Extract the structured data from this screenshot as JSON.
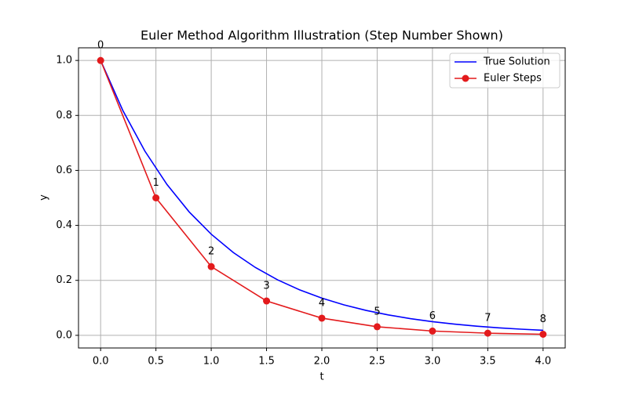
{
  "chart_data": {
    "type": "line",
    "title": "Euler Method Algorithm Illustration (Step Number Shown)",
    "xlabel": "t",
    "ylabel": "y",
    "series": [
      {
        "name": "True Solution",
        "color": "#0000ff",
        "marker": false,
        "x": [
          0,
          0.2,
          0.4,
          0.6,
          0.8,
          1.0,
          1.2,
          1.4,
          1.6,
          1.8,
          2.0,
          2.2,
          2.4,
          2.6,
          2.8,
          3.0,
          3.2,
          3.4,
          3.6,
          3.8,
          4.0
        ],
        "values": [
          1,
          0.8187,
          0.6703,
          0.5488,
          0.4493,
          0.3679,
          0.3012,
          0.2466,
          0.2019,
          0.1653,
          0.1353,
          0.1108,
          0.0907,
          0.0743,
          0.0608,
          0.0498,
          0.0408,
          0.0334,
          0.0273,
          0.0224,
          0.0183
        ]
      },
      {
        "name": "Euler Steps",
        "color": "#e31a1c",
        "marker": true,
        "x": [
          0,
          0.5,
          1.0,
          1.5,
          2.0,
          2.5,
          3.0,
          3.5,
          4.0
        ],
        "values": [
          1,
          0.5,
          0.25,
          0.125,
          0.0625,
          0.03125,
          0.015625,
          0.0078125,
          0.00390625
        ],
        "annotations": [
          "0",
          "1",
          "2",
          "3",
          "4",
          "5",
          "6",
          "7",
          "8"
        ]
      }
    ],
    "xlim": [
      -0.2,
      4.2
    ],
    "ylim": [
      -0.046,
      1.046
    ],
    "xticks": [
      {
        "value": 0,
        "label": "0.0"
      },
      {
        "value": 0.5,
        "label": "0.5"
      },
      {
        "value": 1,
        "label": "1.0"
      },
      {
        "value": 1.5,
        "label": "1.5"
      },
      {
        "value": 2,
        "label": "2.0"
      },
      {
        "value": 2.5,
        "label": "2.5"
      },
      {
        "value": 3,
        "label": "3.0"
      },
      {
        "value": 3.5,
        "label": "3.5"
      },
      {
        "value": 4,
        "label": "4.0"
      }
    ],
    "yticks": [
      {
        "value": 0,
        "label": "0.0"
      },
      {
        "value": 0.2,
        "label": "0.2"
      },
      {
        "value": 0.4,
        "label": "0.4"
      },
      {
        "value": 0.6,
        "label": "0.6"
      },
      {
        "value": 0.8,
        "label": "0.8"
      },
      {
        "value": 1,
        "label": "1.0"
      }
    ],
    "grid": true,
    "legend": "upper right"
  }
}
